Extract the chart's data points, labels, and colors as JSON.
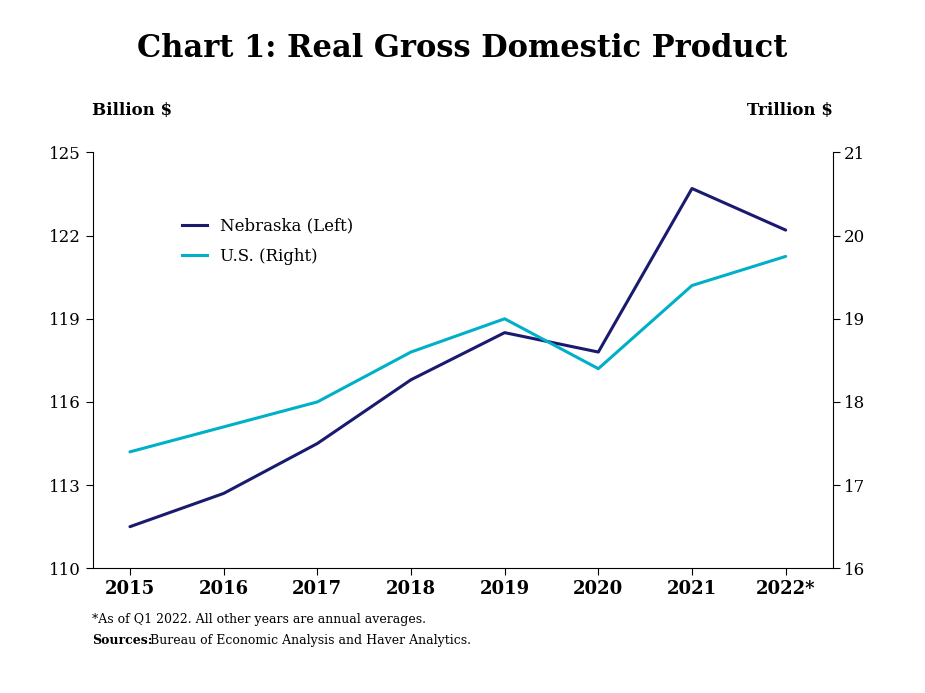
{
  "title": "Chart 1: Real Gross Domestic Product",
  "years": [
    2015,
    2016,
    2017,
    2018,
    2019,
    2020,
    2021,
    2022
  ],
  "year_labels": [
    "2015",
    "2016",
    "2017",
    "2018",
    "2019",
    "2020",
    "2021",
    "2022*"
  ],
  "nebraska": [
    111.5,
    112.7,
    114.5,
    116.8,
    118.5,
    117.8,
    123.7,
    122.2
  ],
  "us": [
    17.4,
    17.7,
    18.0,
    18.6,
    19.0,
    18.4,
    19.4,
    19.75
  ],
  "nebraska_color": "#1a1a6e",
  "us_color": "#00b0c8",
  "left_ylabel": "Billion $",
  "right_ylabel": "Trillion $",
  "left_ylim": [
    110,
    125
  ],
  "right_ylim": [
    16,
    21
  ],
  "left_yticks": [
    110,
    113,
    116,
    119,
    122,
    125
  ],
  "right_yticks": [
    16,
    17,
    18,
    19,
    20,
    21
  ],
  "left_ytick_labels": [
    "110",
    "113",
    "116",
    "119",
    "122",
    "125"
  ],
  "right_ytick_labels": [
    "16",
    "17",
    "18",
    "19",
    "20",
    "21"
  ],
  "legend_labels": [
    "Nebraska (Left)",
    "U.S. (Right)"
  ],
  "footnote": "*As of Q1 2022. All other years are annual averages.",
  "source_bold": "Sources:",
  "source_regular": " Bureau of Economic Analysis and Haver Analytics.",
  "line_width": 2.2,
  "background_color": "#ffffff",
  "title_fontsize": 22,
  "axis_label_fontsize": 12,
  "tick_fontsize": 12,
  "legend_fontsize": 12,
  "footnote_fontsize": 9
}
